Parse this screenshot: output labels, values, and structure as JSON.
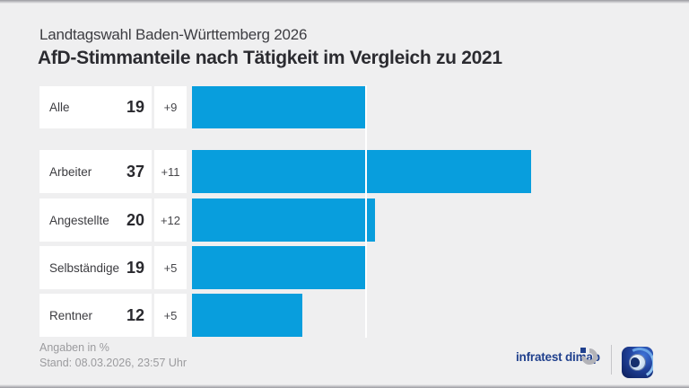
{
  "header": {
    "subtitle": "Landtagswahl Baden-Württemberg 2026",
    "title": "AfD-Stimmanteile nach Tätigkeit im Vergleich zu 2021"
  },
  "chart_data": {
    "type": "bar",
    "orientation": "horizontal",
    "categories": [
      "Alle",
      "Arbeiter",
      "Angestellte",
      "Selbständige",
      "Rentner"
    ],
    "values": [
      19,
      37,
      20,
      19,
      12
    ],
    "changes": [
      "+9",
      "+11",
      "+12",
      "+5",
      "+5"
    ],
    "reference_line_value": 19,
    "xlim": [
      0,
      54
    ],
    "unit": "%",
    "bar_color": "#089edd",
    "legend": "none",
    "grid": "single white reference line at value of 'Alle'"
  },
  "footer": {
    "note": "Angaben in %",
    "stand": "Stand:  08.03.2026, 23:57 Uhr",
    "source_label": "infratest dimap"
  },
  "icons": {
    "infratest_dimap_logo": "broken-ring-with-square",
    "tagesschau_logo": "globe-app-icon"
  }
}
